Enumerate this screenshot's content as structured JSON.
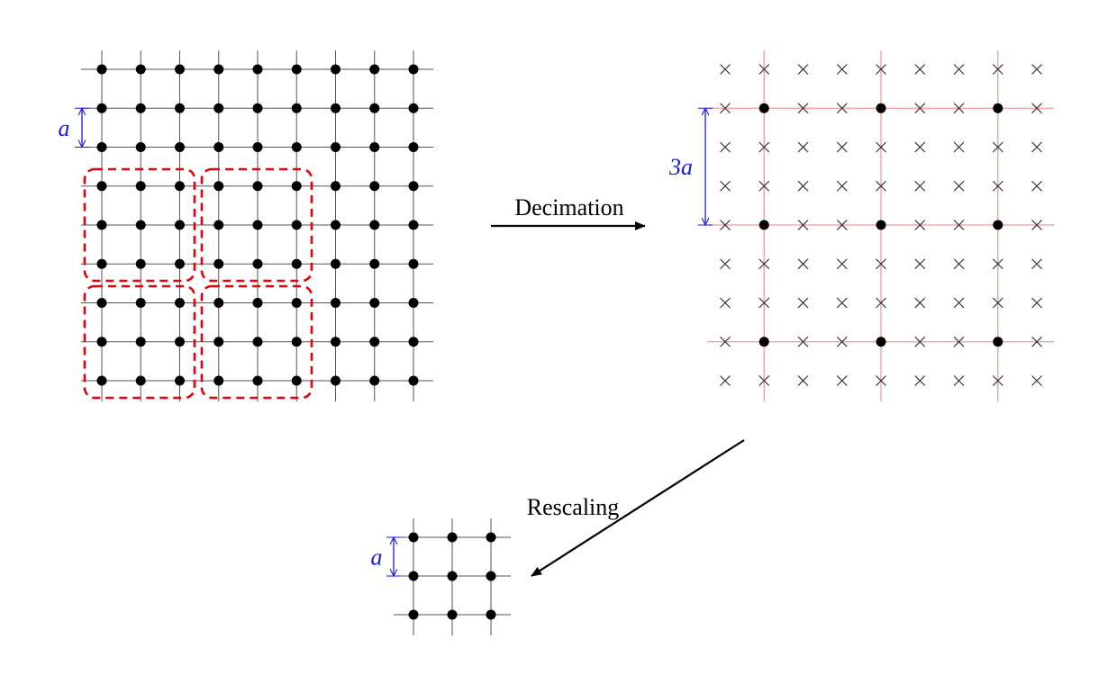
{
  "colors": {
    "lattice_line": "#555555",
    "site": "#000000",
    "block_border": "#e8000b",
    "decimated_line": "#f29a9a",
    "cross": "#333333",
    "spacing_annotation": "#1a1ae6",
    "arrow": "#000000"
  },
  "original_lattice": {
    "spacing_label": "a",
    "grid": 9,
    "blocks": 4
  },
  "decimated_lattice": {
    "spacing_label": "3a",
    "grid": 9,
    "kept_every": 3,
    "removed_site_marker": "cross-mark"
  },
  "rescaled_lattice": {
    "spacing_label": "a",
    "grid": 3
  },
  "arrows": {
    "decimation": "Decimation",
    "rescaling": "Rescaling"
  }
}
